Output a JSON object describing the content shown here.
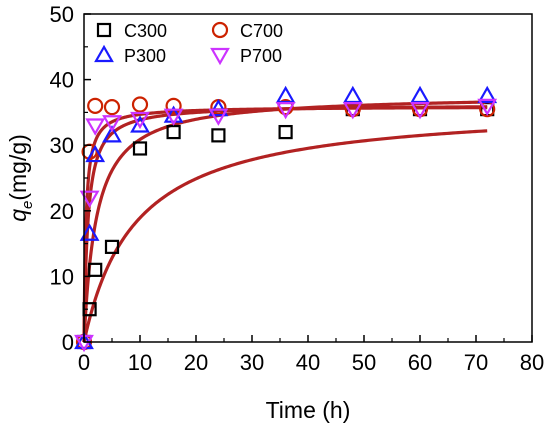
{
  "chart_data": {
    "type": "scatter",
    "xlabel": "Time (h)",
    "ylabel_main": "q",
    "ylabel_sub": "e",
    "ylabel_unit": "(mg/g)",
    "xlim": [
      0,
      80
    ],
    "ylim": [
      0,
      50
    ],
    "xticks": [
      "0",
      "10",
      "20",
      "30",
      "40",
      "50",
      "60",
      "70",
      "80"
    ],
    "yticks": [
      "0",
      "10",
      "20",
      "30",
      "40",
      "50"
    ],
    "legend_position": "top-left",
    "grid": false,
    "fit_color": "#b22222",
    "series": [
      {
        "name": "C300",
        "marker": "square",
        "color": "#000000",
        "x": [
          0,
          1,
          2,
          5,
          10,
          16,
          24,
          36,
          48,
          60,
          72
        ],
        "y": [
          0,
          5,
          11,
          14.5,
          29.5,
          32,
          31.5,
          32,
          35.5,
          35.5,
          35.5
        ],
        "fit": {
          "qe": 36.3,
          "k": 0.3
        }
      },
      {
        "name": "C700",
        "marker": "circle",
        "color": "#cc2200",
        "x": [
          0,
          1,
          2,
          5,
          10,
          16,
          24,
          36,
          48,
          60,
          72
        ],
        "y": [
          0,
          29,
          36,
          35.8,
          36.2,
          36,
          35.8,
          35.8,
          35.5,
          35.5,
          35.5
        ],
        "fit": {
          "qe": 35.9,
          "k": 8
        }
      },
      {
        "name": "P300",
        "marker": "triangle-up",
        "color": "#1a1aff",
        "x": [
          0,
          1,
          2,
          5,
          10,
          16,
          24,
          36,
          48,
          60,
          72
        ],
        "y": [
          0,
          16.5,
          28.5,
          31.5,
          33,
          34.5,
          35.5,
          37.5,
          37.5,
          37.5,
          37.5
        ],
        "fit": {
          "qe": 37.7,
          "k": 1.2
        }
      },
      {
        "name": "P700",
        "marker": "triangle-down",
        "color": "#cc33ff",
        "x": [
          0,
          1,
          2,
          5,
          10,
          16,
          24,
          36,
          48,
          60,
          72
        ],
        "y": [
          0,
          22,
          33,
          33.5,
          34,
          34.5,
          34.5,
          35.5,
          35.5,
          35.5,
          36
        ],
        "fit": {
          "qe": 36.2,
          "k": 4
        }
      }
    ]
  }
}
